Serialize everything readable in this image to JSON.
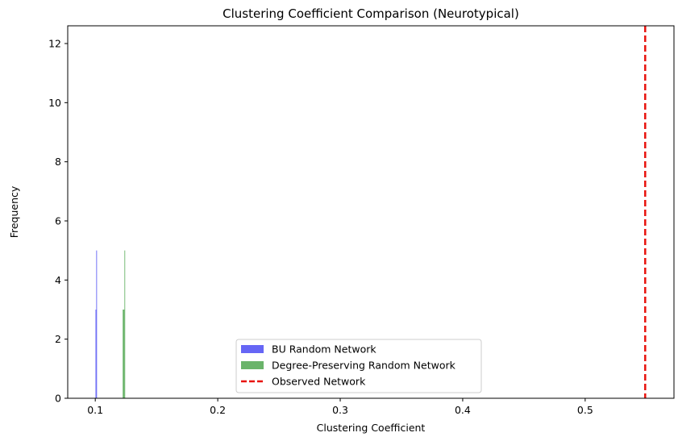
{
  "chart_data": {
    "type": "histogram",
    "title": "Clustering Coefficient Comparison (Neurotypical)",
    "xlabel": "Clustering Coefficient",
    "ylabel": "Frequency",
    "xlim": [
      0.0775,
      0.5725
    ],
    "ylim": [
      0,
      12.6
    ],
    "xticks": [
      0.1,
      0.2,
      0.3,
      0.4,
      0.5
    ],
    "xtick_labels": [
      "0.1",
      "0.2",
      "0.3",
      "0.4",
      "0.5"
    ],
    "yticks": [
      0,
      2,
      4,
      6,
      8,
      10,
      12
    ],
    "ytick_labels": [
      "0",
      "2",
      "4",
      "6",
      "8",
      "10",
      "12"
    ],
    "grid": false,
    "legend_position": "lower-center",
    "series": [
      {
        "name": "BU Random Network",
        "color": "#6666f5",
        "bars": [
          {
            "x0": 0.1002,
            "x1": 0.1008,
            "value": 3
          },
          {
            "x0": 0.1008,
            "x1": 0.1014,
            "value": 5
          }
        ]
      },
      {
        "name": "Degree-Preserving Random Network",
        "color": "#6ab46a",
        "bars": [
          {
            "x0": 0.1224,
            "x1": 0.1238,
            "value": 3
          },
          {
            "x0": 0.1238,
            "x1": 0.1244,
            "value": 5
          }
        ]
      }
    ],
    "reference_lines": [
      {
        "name": "Observed Network",
        "x": 0.549,
        "color": "#e8120c",
        "style": "dashed"
      }
    ]
  }
}
